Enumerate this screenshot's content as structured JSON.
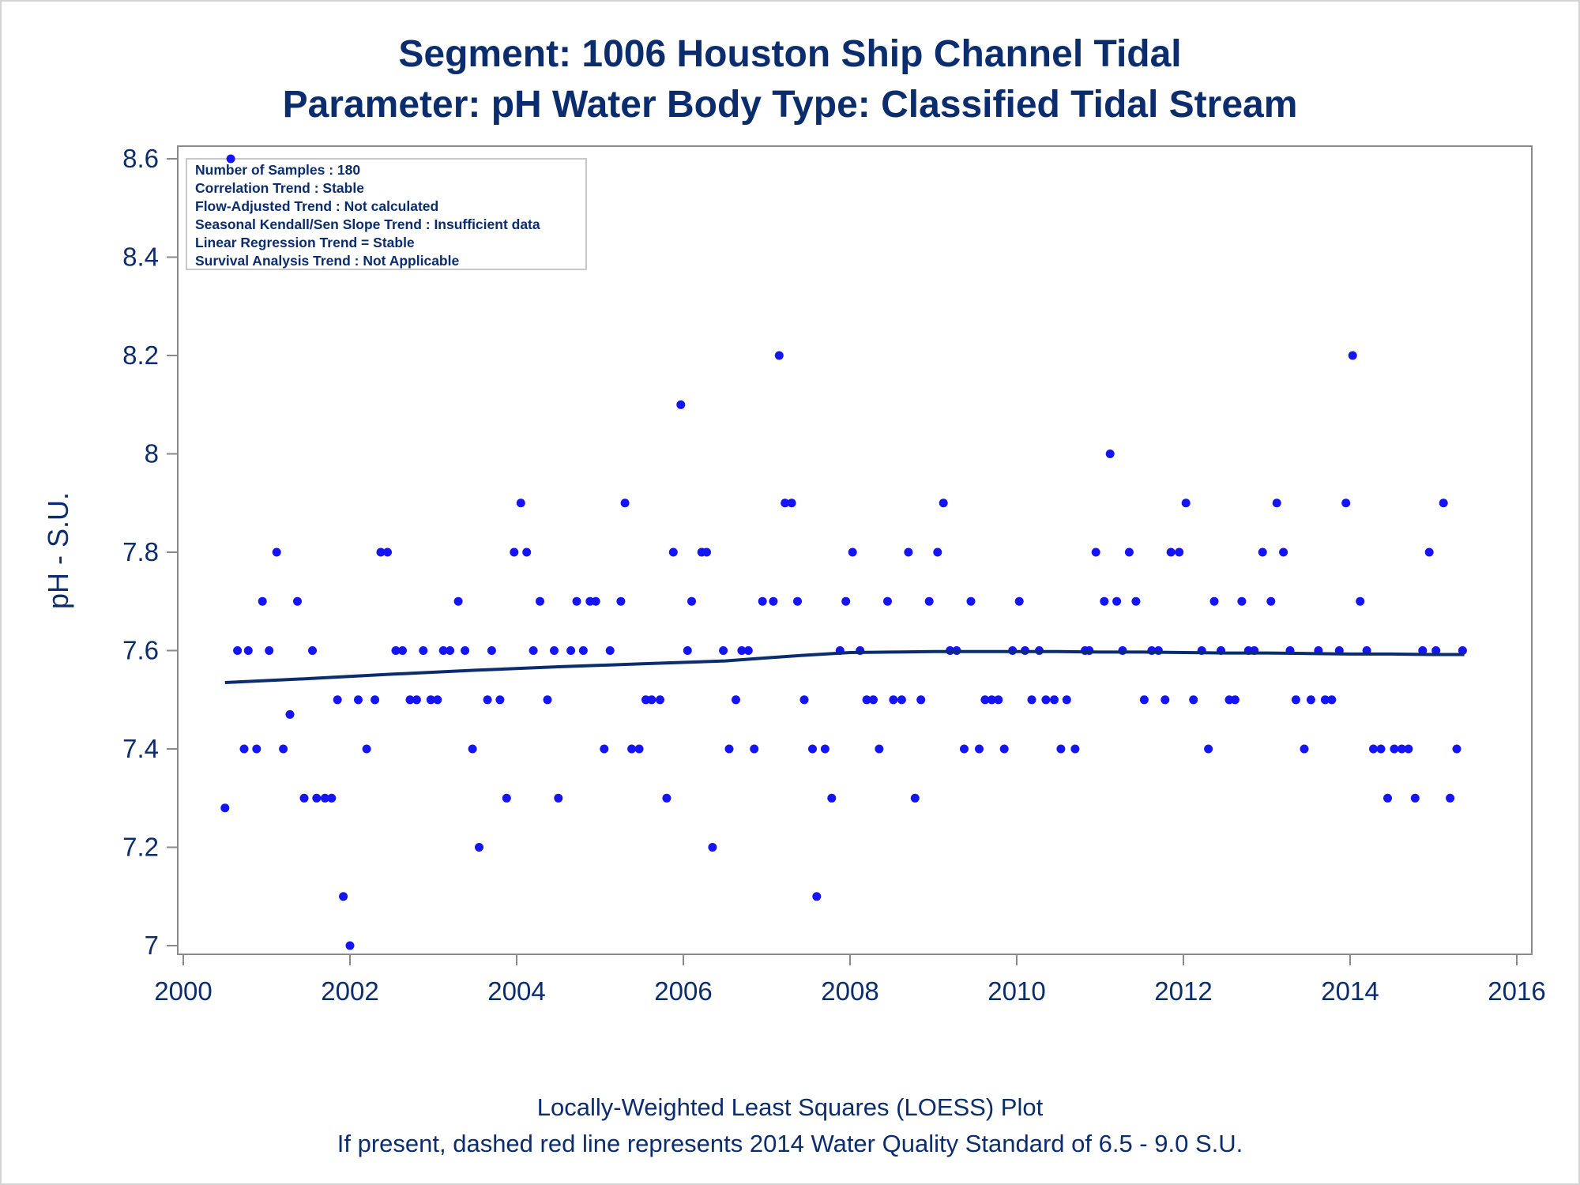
{
  "chart_data": {
    "type": "scatter",
    "title": "Segment: 1006  Houston Ship Channel Tidal",
    "subtitle": "Parameter: pH   Water Body Type: Classified Tidal Stream",
    "xlabel": "",
    "ylabel": "pH - S.U.",
    "xlim": [
      2000,
      2016
    ],
    "ylim": [
      6.99,
      8.63
    ],
    "x_ticks": [
      "2000",
      "2002",
      "2004",
      "2006",
      "2008",
      "2010",
      "2012",
      "2014",
      "2016"
    ],
    "y_ticks": [
      "7",
      "7.2",
      "7.4",
      "7.6",
      "7.8",
      "8",
      "8.2",
      "8.4",
      "8.6"
    ],
    "grid": false,
    "colors": {
      "points": "#1414f5",
      "loess": "#0b2d6e",
      "text": "#0b2d6e",
      "axis": "#8a8a8a"
    },
    "inset_lines": [
      "Number of Samples : 180",
      "Correlation Trend : Stable",
      "Flow-Adjusted Trend : Not calculated",
      "Seasonal Kendall/Sen Slope Trend : Insufficient data",
      "Linear Regression Trend = Stable",
      "Survival Analysis Trend : Not Applicable"
    ],
    "footnotes": [
      "Locally-Weighted Least Squares (LOESS) Plot",
      "If present, dashed red line represents 2014 Water Quality Standard of 6.5 - 9.0 S.U."
    ],
    "series": [
      {
        "type": "scatter",
        "points": [
          [
            2000.5,
            7.28
          ],
          [
            2000.57,
            8.6
          ],
          [
            2000.65,
            7.6
          ],
          [
            2000.73,
            7.4
          ],
          [
            2000.78,
            7.6
          ],
          [
            2000.88,
            7.4
          ],
          [
            2000.95,
            7.7
          ],
          [
            2001.03,
            7.6
          ],
          [
            2001.12,
            7.8
          ],
          [
            2001.2,
            7.4
          ],
          [
            2001.28,
            7.47
          ],
          [
            2001.37,
            7.7
          ],
          [
            2001.45,
            7.3
          ],
          [
            2001.55,
            7.6
          ],
          [
            2001.6,
            7.3
          ],
          [
            2001.7,
            7.3
          ],
          [
            2001.78,
            7.3
          ],
          [
            2001.85,
            7.5
          ],
          [
            2001.92,
            7.1
          ],
          [
            2002.0,
            7.0
          ],
          [
            2002.1,
            7.5
          ],
          [
            2002.2,
            7.4
          ],
          [
            2002.3,
            7.5
          ],
          [
            2002.37,
            7.8
          ],
          [
            2002.45,
            7.8
          ],
          [
            2002.55,
            7.6
          ],
          [
            2002.63,
            7.6
          ],
          [
            2002.72,
            7.5
          ],
          [
            2002.8,
            7.5
          ],
          [
            2002.88,
            7.6
          ],
          [
            2002.97,
            7.5
          ],
          [
            2003.05,
            7.5
          ],
          [
            2003.12,
            7.6
          ],
          [
            2003.2,
            7.6
          ],
          [
            2003.3,
            7.7
          ],
          [
            2003.38,
            7.6
          ],
          [
            2003.47,
            7.4
          ],
          [
            2003.55,
            7.2
          ],
          [
            2003.65,
            7.5
          ],
          [
            2003.7,
            7.6
          ],
          [
            2003.8,
            7.5
          ],
          [
            2003.88,
            7.3
          ],
          [
            2003.97,
            7.8
          ],
          [
            2004.05,
            7.9
          ],
          [
            2004.12,
            7.8
          ],
          [
            2004.2,
            7.6
          ],
          [
            2004.28,
            7.7
          ],
          [
            2004.37,
            7.5
          ],
          [
            2004.45,
            7.6
          ],
          [
            2004.5,
            7.3
          ],
          [
            2004.65,
            7.6
          ],
          [
            2004.72,
            7.7
          ],
          [
            2004.8,
            7.6
          ],
          [
            2004.88,
            7.7
          ],
          [
            2004.95,
            7.7
          ],
          [
            2005.05,
            7.4
          ],
          [
            2005.12,
            7.6
          ],
          [
            2005.25,
            7.7
          ],
          [
            2005.3,
            7.9
          ],
          [
            2005.38,
            7.4
          ],
          [
            2005.47,
            7.4
          ],
          [
            2005.55,
            7.5
          ],
          [
            2005.62,
            7.5
          ],
          [
            2005.72,
            7.5
          ],
          [
            2005.8,
            7.3
          ],
          [
            2005.88,
            7.8
          ],
          [
            2005.97,
            8.1
          ],
          [
            2006.05,
            7.6
          ],
          [
            2006.1,
            7.7
          ],
          [
            2006.22,
            7.8
          ],
          [
            2006.28,
            7.8
          ],
          [
            2006.35,
            7.2
          ],
          [
            2006.48,
            7.6
          ],
          [
            2006.55,
            7.4
          ],
          [
            2006.63,
            7.5
          ],
          [
            2006.7,
            7.6
          ],
          [
            2006.78,
            7.6
          ],
          [
            2006.85,
            7.4
          ],
          [
            2006.95,
            7.7
          ],
          [
            2007.08,
            7.7
          ],
          [
            2007.15,
            8.2
          ],
          [
            2007.22,
            7.9
          ],
          [
            2007.3,
            7.9
          ],
          [
            2007.37,
            7.7
          ],
          [
            2007.45,
            7.5
          ],
          [
            2007.55,
            7.4
          ],
          [
            2007.6,
            7.1
          ],
          [
            2007.7,
            7.4
          ],
          [
            2007.78,
            7.3
          ],
          [
            2007.88,
            7.6
          ],
          [
            2007.95,
            7.7
          ],
          [
            2008.03,
            7.8
          ],
          [
            2008.12,
            7.6
          ],
          [
            2008.2,
            7.5
          ],
          [
            2008.28,
            7.5
          ],
          [
            2008.35,
            7.4
          ],
          [
            2008.45,
            7.7
          ],
          [
            2008.52,
            7.5
          ],
          [
            2008.62,
            7.5
          ],
          [
            2008.7,
            7.8
          ],
          [
            2008.78,
            7.3
          ],
          [
            2008.85,
            7.5
          ],
          [
            2008.95,
            7.7
          ],
          [
            2009.05,
            7.8
          ],
          [
            2009.12,
            7.9
          ],
          [
            2009.2,
            7.6
          ],
          [
            2009.28,
            7.6
          ],
          [
            2009.37,
            7.4
          ],
          [
            2009.45,
            7.7
          ],
          [
            2009.55,
            7.4
          ],
          [
            2009.62,
            7.5
          ],
          [
            2009.7,
            7.5
          ],
          [
            2009.78,
            7.5
          ],
          [
            2009.85,
            7.4
          ],
          [
            2009.95,
            7.6
          ],
          [
            2010.03,
            7.7
          ],
          [
            2010.1,
            7.6
          ],
          [
            2010.18,
            7.5
          ],
          [
            2010.27,
            7.6
          ],
          [
            2010.35,
            7.5
          ],
          [
            2010.45,
            7.5
          ],
          [
            2010.53,
            7.4
          ],
          [
            2010.6,
            7.5
          ],
          [
            2010.7,
            7.4
          ],
          [
            2010.82,
            7.6
          ],
          [
            2010.87,
            7.6
          ],
          [
            2010.95,
            7.8
          ],
          [
            2011.05,
            7.7
          ],
          [
            2011.12,
            8.0
          ],
          [
            2011.2,
            7.7
          ],
          [
            2011.27,
            7.6
          ],
          [
            2011.35,
            7.8
          ],
          [
            2011.43,
            7.7
          ],
          [
            2011.53,
            7.5
          ],
          [
            2011.62,
            7.6
          ],
          [
            2011.7,
            7.6
          ],
          [
            2011.78,
            7.5
          ],
          [
            2011.85,
            7.8
          ],
          [
            2011.95,
            7.8
          ],
          [
            2012.03,
            7.9
          ],
          [
            2012.12,
            7.5
          ],
          [
            2012.22,
            7.6
          ],
          [
            2012.3,
            7.4
          ],
          [
            2012.37,
            7.7
          ],
          [
            2012.45,
            7.6
          ],
          [
            2012.55,
            7.5
          ],
          [
            2012.62,
            7.5
          ],
          [
            2012.7,
            7.7
          ],
          [
            2012.78,
            7.6
          ],
          [
            2012.85,
            7.6
          ],
          [
            2012.95,
            7.8
          ],
          [
            2013.05,
            7.7
          ],
          [
            2013.12,
            7.9
          ],
          [
            2013.2,
            7.8
          ],
          [
            2013.28,
            7.6
          ],
          [
            2013.35,
            7.5
          ],
          [
            2013.45,
            7.4
          ],
          [
            2013.53,
            7.5
          ],
          [
            2013.62,
            7.6
          ],
          [
            2013.7,
            7.5
          ],
          [
            2013.78,
            7.5
          ],
          [
            2013.87,
            7.6
          ],
          [
            2013.95,
            7.9
          ],
          [
            2014.03,
            8.2
          ],
          [
            2014.12,
            7.7
          ],
          [
            2014.2,
            7.6
          ],
          [
            2014.28,
            7.4
          ],
          [
            2014.37,
            7.4
          ],
          [
            2014.45,
            7.3
          ],
          [
            2014.53,
            7.4
          ],
          [
            2014.62,
            7.4
          ],
          [
            2014.7,
            7.4
          ],
          [
            2014.78,
            7.3
          ],
          [
            2014.87,
            7.6
          ],
          [
            2014.95,
            7.8
          ],
          [
            2015.03,
            7.6
          ],
          [
            2015.12,
            7.9
          ],
          [
            2015.2,
            7.3
          ],
          [
            2015.28,
            7.4
          ],
          [
            2015.35,
            7.6
          ]
        ]
      },
      {
        "type": "line",
        "points": [
          [
            2000.5,
            7.535
          ],
          [
            2001.5,
            7.543
          ],
          [
            2002.5,
            7.552
          ],
          [
            2003.5,
            7.56
          ],
          [
            2004.5,
            7.567
          ],
          [
            2005.5,
            7.573
          ],
          [
            2006.5,
            7.579
          ],
          [
            2007.0,
            7.585
          ],
          [
            2007.5,
            7.591
          ],
          [
            2008.0,
            7.596
          ],
          [
            2008.5,
            7.597
          ],
          [
            2009.0,
            7.598
          ],
          [
            2009.5,
            7.598
          ],
          [
            2010.0,
            7.598
          ],
          [
            2010.5,
            7.598
          ],
          [
            2011.0,
            7.597
          ],
          [
            2011.5,
            7.597
          ],
          [
            2012.0,
            7.596
          ],
          [
            2012.5,
            7.595
          ],
          [
            2013.0,
            7.595
          ],
          [
            2013.5,
            7.594
          ],
          [
            2014.0,
            7.593
          ],
          [
            2014.5,
            7.593
          ],
          [
            2015.0,
            7.592
          ],
          [
            2015.37,
            7.592
          ]
        ]
      }
    ]
  }
}
